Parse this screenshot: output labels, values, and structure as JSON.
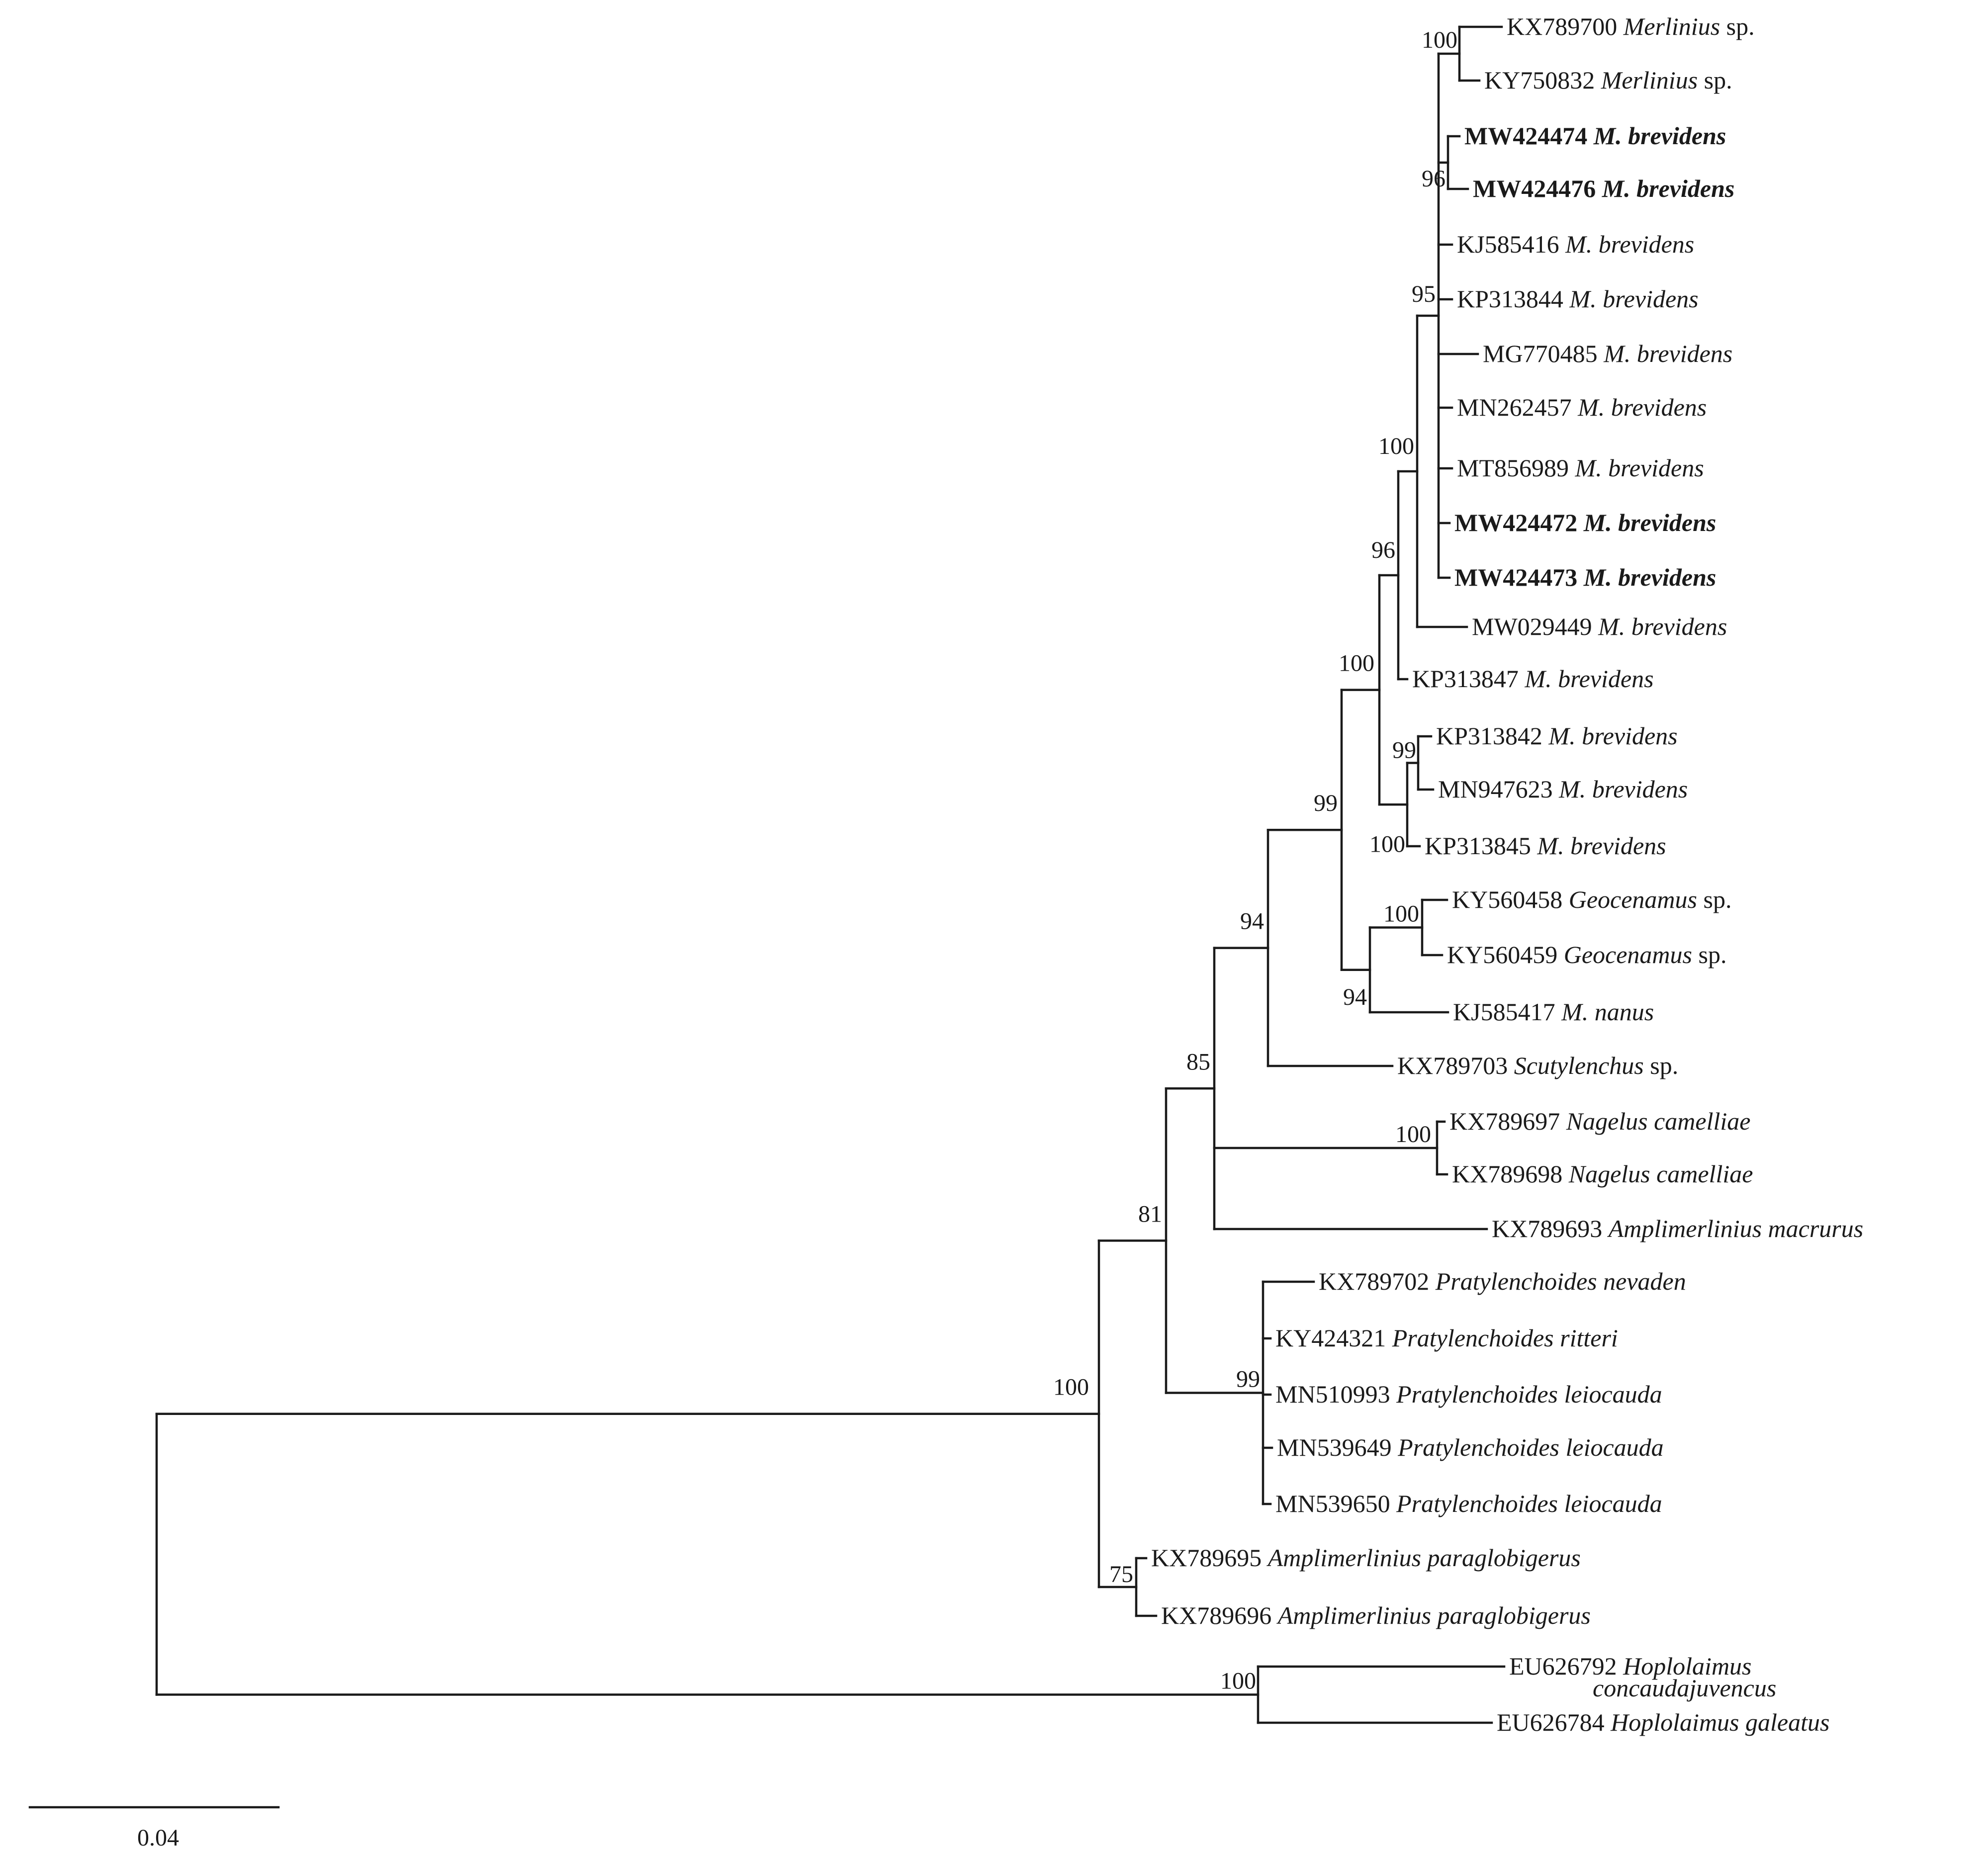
{
  "tree": {
    "scale_bar": {
      "label": "0.04"
    },
    "nodes": [
      {
        "id": "root",
        "support": ""
      },
      {
        "id": "n1",
        "support": "100"
      },
      {
        "id": "n2",
        "support": "81"
      },
      {
        "id": "n3",
        "support": "85"
      },
      {
        "id": "n4",
        "support": "94"
      },
      {
        "id": "n5",
        "support": "99"
      },
      {
        "id": "n6",
        "support": "100"
      },
      {
        "id": "n7",
        "support": "96"
      },
      {
        "id": "n8",
        "support": "100"
      },
      {
        "id": "n9",
        "support": "95"
      },
      {
        "id": "n10",
        "support": "100"
      },
      {
        "id": "n11",
        "support": "96"
      },
      {
        "id": "n12",
        "support": "100"
      },
      {
        "id": "n13",
        "support": "99"
      },
      {
        "id": "n14",
        "support": "94"
      },
      {
        "id": "n15",
        "support": "100"
      },
      {
        "id": "n16",
        "support": "100"
      },
      {
        "id": "n17",
        "support": "99"
      },
      {
        "id": "n18",
        "support": "75"
      },
      {
        "id": "n19",
        "support": "100"
      }
    ],
    "taxa": [
      {
        "accession": "KX789700",
        "species": "Merlinius",
        "suffix": " sp.",
        "highlight": false
      },
      {
        "accession": "KY750832",
        "species": "Merlinius",
        "suffix": " sp.",
        "highlight": false
      },
      {
        "accession": "MW424474",
        "species": "M. brevidens",
        "suffix": "",
        "highlight": true
      },
      {
        "accession": "MW424476",
        "species": "M. brevidens",
        "suffix": "",
        "highlight": true
      },
      {
        "accession": "KJ585416",
        "species": "M. brevidens",
        "suffix": "",
        "highlight": false
      },
      {
        "accession": "KP313844",
        "species": "M. brevidens",
        "suffix": "",
        "highlight": false
      },
      {
        "accession": "MG770485",
        "species": "M. brevidens",
        "suffix": "",
        "highlight": false
      },
      {
        "accession": "MN262457",
        "species": "M. brevidens",
        "suffix": "",
        "highlight": false
      },
      {
        "accession": "MT856989",
        "species": "M. brevidens",
        "suffix": "",
        "highlight": false
      },
      {
        "accession": "MW424472",
        "species": "M. brevidens",
        "suffix": "",
        "highlight": true
      },
      {
        "accession": "MW424473",
        "species": "M. brevidens",
        "suffix": "",
        "highlight": true
      },
      {
        "accession": "MW029449",
        "species": "M. brevidens",
        "suffix": "",
        "highlight": false
      },
      {
        "accession": "KP313847",
        "species": "M. brevidens",
        "suffix": "",
        "highlight": false
      },
      {
        "accession": "KP313842",
        "species": "M. brevidens",
        "suffix": "",
        "highlight": false
      },
      {
        "accession": "MN947623",
        "species": "M. brevidens",
        "suffix": "",
        "highlight": false
      },
      {
        "accession": "KP313845",
        "species": "M. brevidens",
        "suffix": "",
        "highlight": false
      },
      {
        "accession": "KY560458",
        "species": "Geocenamus",
        "suffix": " sp.",
        "highlight": false
      },
      {
        "accession": "KY560459",
        "species": "Geocenamus",
        "suffix": " sp.",
        "highlight": false
      },
      {
        "accession": "KJ585417",
        "species": "M. nanus",
        "suffix": "",
        "highlight": false
      },
      {
        "accession": "KX789703",
        "species": "Scutylenchus",
        "suffix": " sp.",
        "highlight": false
      },
      {
        "accession": "KX789697",
        "species": "Nagelus camelliae",
        "suffix": "",
        "highlight": false
      },
      {
        "accession": "KX789698",
        "species": "Nagelus camelliae",
        "suffix": "",
        "highlight": false
      },
      {
        "accession": "KX789693",
        "species": "Amplimerlinius macrurus",
        "suffix": "",
        "highlight": false
      },
      {
        "accession": "KX789702",
        "species": "Pratylenchoides nevaden",
        "suffix": "",
        "highlight": false
      },
      {
        "accession": "KY424321",
        "species": "Pratylenchoides ritteri",
        "suffix": "",
        "highlight": false
      },
      {
        "accession": "MN510993",
        "species": "Pratylenchoides leiocauda",
        "suffix": "",
        "highlight": false
      },
      {
        "accession": "MN539649",
        "species": "Pratylenchoides leiocauda",
        "suffix": "",
        "highlight": false
      },
      {
        "accession": "MN539650",
        "species": "Pratylenchoides leiocauda",
        "suffix": "",
        "highlight": false
      },
      {
        "accession": "KX789695",
        "species": "Amplimerlinius paraglobigerus",
        "suffix": "",
        "highlight": false
      },
      {
        "accession": "KX789696",
        "species": "Amplimerlinius paraglobigerus",
        "suffix": "",
        "highlight": false
      },
      {
        "accession": "EU626792",
        "species": "Hoplolaimus",
        "species_line2": "concaudajuvencus",
        "suffix": "",
        "highlight": false
      },
      {
        "accession": "EU626784",
        "species": "Hoplolaimus galeatus",
        "suffix": "",
        "highlight": false
      }
    ]
  }
}
